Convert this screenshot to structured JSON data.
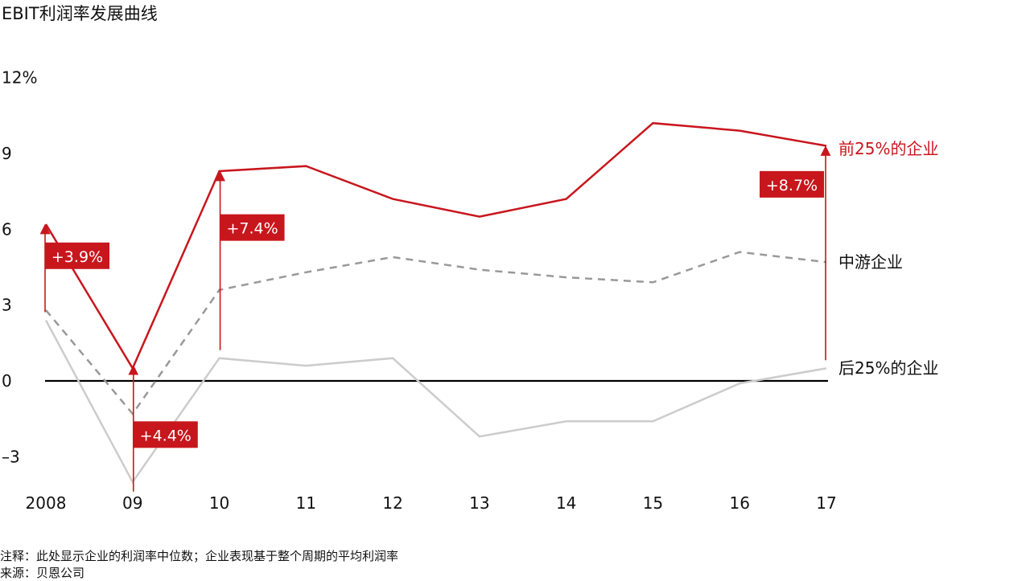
{
  "title": "EBIT利润率发展曲线",
  "note": "注释：此处显示企业的利润率中位数；企业表现基于整个周期的平均利润率",
  "source": "来源：贝恩公司",
  "colors": {
    "top": "#c8161d",
    "mid": "#999999",
    "bottom": "#cccccc",
    "zero": "#000000"
  },
  "chart_data": {
    "type": "line",
    "categories": [
      "2008",
      "09",
      "10",
      "11",
      "12",
      "13",
      "14",
      "15",
      "16",
      "17"
    ],
    "ylim": [
      -4,
      12
    ],
    "yticks": [
      {
        "value": 12,
        "label": "12%"
      },
      {
        "value": 9,
        "label": "9"
      },
      {
        "value": 6,
        "label": "6"
      },
      {
        "value": 3,
        "label": "3"
      },
      {
        "value": 0,
        "label": "0"
      },
      {
        "value": -3,
        "label": "–3"
      }
    ],
    "series": [
      {
        "name": "前25%的企业",
        "key": "top",
        "style": "solid",
        "values": [
          6.2,
          0.5,
          8.3,
          8.5,
          7.2,
          6.5,
          7.2,
          10.2,
          9.9,
          9.3
        ]
      },
      {
        "name": "中游企业",
        "key": "mid",
        "style": "dashed",
        "values": [
          2.8,
          -1.3,
          3.6,
          4.3,
          4.9,
          4.4,
          4.1,
          3.9,
          5.1,
          4.7
        ]
      },
      {
        "name": "后25%的企业",
        "key": "bottom",
        "style": "solid",
        "values": [
          2.4,
          -4.0,
          0.9,
          0.6,
          0.9,
          -2.2,
          -1.6,
          -1.6,
          -0.1,
          0.5
        ]
      }
    ],
    "annotations": [
      {
        "category_index": 0,
        "label": "+3.9%"
      },
      {
        "category_index": 1,
        "label": "+4.4%"
      },
      {
        "category_index": 2,
        "label": "+7.4%"
      },
      {
        "category_index": 9,
        "label": "+8.7%"
      }
    ]
  }
}
